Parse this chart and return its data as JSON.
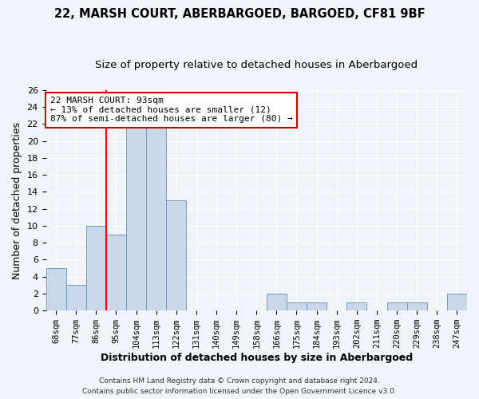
{
  "title": "22, MARSH COURT, ABERBARGOED, BARGOED, CF81 9BF",
  "subtitle": "Size of property relative to detached houses in Aberbargoed",
  "xlabel": "Distribution of detached houses by size in Aberbargoed",
  "ylabel": "Number of detached properties",
  "footer_line1": "Contains HM Land Registry data © Crown copyright and database right 2024.",
  "footer_line2": "Contains public sector information licensed under the Open Government Licence v3.0.",
  "bin_labels": [
    "68sqm",
    "77sqm",
    "86sqm",
    "95sqm",
    "104sqm",
    "113sqm",
    "122sqm",
    "131sqm",
    "140sqm",
    "149sqm",
    "158sqm",
    "166sqm",
    "175sqm",
    "184sqm",
    "193sqm",
    "202sqm",
    "211sqm",
    "220sqm",
    "229sqm",
    "238sqm",
    "247sqm"
  ],
  "bin_values": [
    5,
    3,
    10,
    9,
    22,
    22,
    13,
    0,
    0,
    0,
    0,
    2,
    1,
    1,
    0,
    1,
    0,
    1,
    1,
    0,
    2
  ],
  "bar_color": "#c8d8e8",
  "bar_edge_color": "#7799bb",
  "property_line_bin_idx": 3,
  "property_line_label": "22 MARSH COURT: 93sqm",
  "annotation_line1": "← 13% of detached houses are smaller (12)",
  "annotation_line2": "87% of semi-detached houses are larger (80) →",
  "annotation_box_color": "#cc0000",
  "ylim": [
    0,
    26
  ],
  "yticks": [
    0,
    2,
    4,
    6,
    8,
    10,
    12,
    14,
    16,
    18,
    20,
    22,
    24,
    26
  ],
  "bg_color": "#f0f4f8",
  "plot_bg_color": "#f0f4f8",
  "grid_color": "#ffffff",
  "title_fontsize": 10.5,
  "subtitle_fontsize": 9.5,
  "axis_label_fontsize": 9,
  "tick_fontsize": 8,
  "footer_fontsize": 6.5
}
